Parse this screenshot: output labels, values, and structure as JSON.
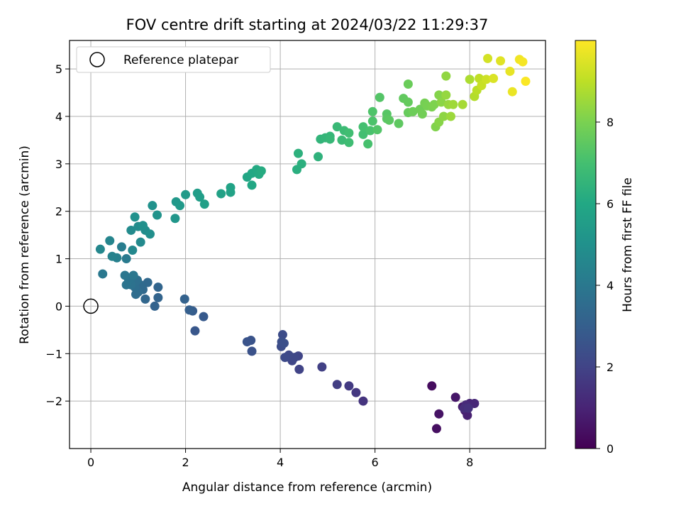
{
  "chart_data": {
    "type": "scatter",
    "title": "FOV centre drift starting at 2024/03/22 11:29:37",
    "xlabel": "Angular distance from reference (arcmin)",
    "ylabel": "Rotation from reference (arcmin)",
    "xlim": [
      -0.45,
      9.6
    ],
    "ylim": [
      -3.0,
      5.6
    ],
    "xticks": [
      0,
      2,
      4,
      6,
      8
    ],
    "yticks": [
      -2,
      -1,
      0,
      1,
      2,
      3,
      4,
      5
    ],
    "xtick_labels": [
      "0",
      "2",
      "4",
      "6",
      "8"
    ],
    "ytick_labels": [
      "−2",
      "−1",
      "0",
      "1",
      "2",
      "3",
      "4",
      "5"
    ],
    "grid": true,
    "legend": {
      "location": "upper left",
      "entries": [
        "Reference platepar"
      ]
    },
    "reference_point": {
      "x": 0,
      "y": 0,
      "label": "Reference platepar"
    },
    "colorbar": {
      "label": "Hours from first FF file",
      "range": [
        0,
        10.0
      ],
      "ticks": [
        0,
        2,
        4,
        6,
        8
      ],
      "tick_labels": [
        "0",
        "2",
        "4",
        "6",
        "8"
      ],
      "colormap": "viridis"
    },
    "points": [
      [
        7.2,
        -1.68,
        0.3
      ],
      [
        7.3,
        -2.58,
        0.4
      ],
      [
        7.35,
        -2.27,
        0.5
      ],
      [
        7.7,
        -1.92,
        0.6
      ],
      [
        7.85,
        -2.12,
        0.7
      ],
      [
        7.9,
        -2.2,
        0.8
      ],
      [
        7.95,
        -2.3,
        0.9
      ],
      [
        8.0,
        -2.05,
        1.0
      ],
      [
        8.1,
        -2.05,
        1.1
      ],
      [
        7.92,
        -2.08,
        1.2
      ],
      [
        7.88,
        -2.15,
        1.3
      ],
      [
        7.97,
        -2.15,
        1.4
      ],
      [
        5.75,
        -2.0,
        1.5
      ],
      [
        5.6,
        -1.82,
        1.6
      ],
      [
        5.45,
        -1.68,
        1.7
      ],
      [
        5.2,
        -1.65,
        1.8
      ],
      [
        4.88,
        -1.28,
        1.9
      ],
      [
        4.4,
        -1.33,
        2.0
      ],
      [
        4.38,
        -1.05,
        2.05
      ],
      [
        4.25,
        -1.15,
        2.1
      ],
      [
        4.3,
        -1.08,
        2.15
      ],
      [
        4.18,
        -1.03,
        2.2
      ],
      [
        4.1,
        -1.08,
        2.25
      ],
      [
        4.05,
        -0.6,
        2.3
      ],
      [
        4.02,
        -0.85,
        2.35
      ],
      [
        4.03,
        -0.75,
        2.4
      ],
      [
        4.08,
        -0.78,
        2.45
      ],
      [
        3.4,
        -0.95,
        2.5
      ],
      [
        3.38,
        -0.72,
        2.55
      ],
      [
        3.3,
        -0.75,
        2.6
      ],
      [
        2.2,
        -0.52,
        2.7
      ],
      [
        2.38,
        -0.22,
        2.8
      ],
      [
        2.15,
        -0.1,
        2.9
      ],
      [
        2.08,
        -0.08,
        3.0
      ],
      [
        1.98,
        0.15,
        3.1
      ],
      [
        1.35,
        0.0,
        3.15
      ],
      [
        1.42,
        0.18,
        3.2
      ],
      [
        1.42,
        0.4,
        3.25
      ],
      [
        1.15,
        0.15,
        3.3
      ],
      [
        1.2,
        0.5,
        3.35
      ],
      [
        1.1,
        0.35,
        3.4
      ],
      [
        1.05,
        0.45,
        3.45
      ],
      [
        1.0,
        0.3,
        3.5
      ],
      [
        0.95,
        0.25,
        3.55
      ],
      [
        0.93,
        0.4,
        3.6
      ],
      [
        0.98,
        0.55,
        3.65
      ],
      [
        0.88,
        0.6,
        3.7
      ],
      [
        0.85,
        0.45,
        3.75
      ],
      [
        0.8,
        0.55,
        3.8
      ],
      [
        0.75,
        0.45,
        3.85
      ],
      [
        0.72,
        0.65,
        3.9
      ],
      [
        0.9,
        0.65,
        3.95
      ],
      [
        0.25,
        0.68,
        4.0
      ],
      [
        0.75,
        1.0,
        4.1
      ],
      [
        0.65,
        1.25,
        4.2
      ],
      [
        0.55,
        1.02,
        4.3
      ],
      [
        0.45,
        1.05,
        4.4
      ],
      [
        0.4,
        1.38,
        4.5
      ],
      [
        0.2,
        1.2,
        4.6
      ],
      [
        0.88,
        1.18,
        4.65
      ],
      [
        1.05,
        1.35,
        4.7
      ],
      [
        0.85,
        1.6,
        4.75
      ],
      [
        1.0,
        1.68,
        4.8
      ],
      [
        1.15,
        1.6,
        4.85
      ],
      [
        1.25,
        1.52,
        4.9
      ],
      [
        1.1,
        1.7,
        4.95
      ],
      [
        0.93,
        1.88,
        5.0
      ],
      [
        1.3,
        2.12,
        5.05
      ],
      [
        1.4,
        1.92,
        5.1
      ],
      [
        1.78,
        1.85,
        5.2
      ],
      [
        1.8,
        2.2,
        5.3
      ],
      [
        1.88,
        2.12,
        5.35
      ],
      [
        2.0,
        2.35,
        5.4
      ],
      [
        2.25,
        2.38,
        5.5
      ],
      [
        2.3,
        2.3,
        5.55
      ],
      [
        2.4,
        2.15,
        5.6
      ],
      [
        2.75,
        2.37,
        5.7
      ],
      [
        2.95,
        2.4,
        5.75
      ],
      [
        2.95,
        2.5,
        5.8
      ],
      [
        3.3,
        2.72,
        5.9
      ],
      [
        3.4,
        2.55,
        5.95
      ],
      [
        3.4,
        2.8,
        6.0
      ],
      [
        3.5,
        2.88,
        6.05
      ],
      [
        3.55,
        2.78,
        6.1
      ],
      [
        3.6,
        2.85,
        6.15
      ],
      [
        4.35,
        2.88,
        6.25
      ],
      [
        4.45,
        3.0,
        6.3
      ],
      [
        4.38,
        3.22,
        6.35
      ],
      [
        4.8,
        3.15,
        6.4
      ],
      [
        4.85,
        3.52,
        6.5
      ],
      [
        4.95,
        3.55,
        6.55
      ],
      [
        5.05,
        3.58,
        6.6
      ],
      [
        5.05,
        3.52,
        6.65
      ],
      [
        5.2,
        3.78,
        6.7
      ],
      [
        5.3,
        3.5,
        6.75
      ],
      [
        5.35,
        3.7,
        6.8
      ],
      [
        5.45,
        3.45,
        6.85
      ],
      [
        5.45,
        3.65,
        6.9
      ],
      [
        5.75,
        3.62,
        6.95
      ],
      [
        5.75,
        3.78,
        7.0
      ],
      [
        5.85,
        3.42,
        7.05
      ],
      [
        5.9,
        3.7,
        7.1
      ],
      [
        5.95,
        3.9,
        7.15
      ],
      [
        5.95,
        4.1,
        7.2
      ],
      [
        6.05,
        3.72,
        7.25
      ],
      [
        6.1,
        4.4,
        7.3
      ],
      [
        6.25,
        4.05,
        7.35
      ],
      [
        6.25,
        3.95,
        7.4
      ],
      [
        6.3,
        3.92,
        7.45
      ],
      [
        6.5,
        3.85,
        7.5
      ],
      [
        6.6,
        4.38,
        7.55
      ],
      [
        6.7,
        4.3,
        7.6
      ],
      [
        6.7,
        4.08,
        7.65
      ],
      [
        6.7,
        4.68,
        7.7
      ],
      [
        6.8,
        4.1,
        7.75
      ],
      [
        6.95,
        4.15,
        7.8
      ],
      [
        7.0,
        4.05,
        7.85
      ],
      [
        7.05,
        4.28,
        7.9
      ],
      [
        7.1,
        4.22,
        7.95
      ],
      [
        7.2,
        4.2,
        8.0
      ],
      [
        7.25,
        4.25,
        8.05
      ],
      [
        7.28,
        3.78,
        8.1
      ],
      [
        7.35,
        4.45,
        8.15
      ],
      [
        7.35,
        3.88,
        8.2
      ],
      [
        7.4,
        4.3,
        8.25
      ],
      [
        7.45,
        4.0,
        8.3
      ],
      [
        7.5,
        4.85,
        8.35
      ],
      [
        7.5,
        4.45,
        8.4
      ],
      [
        7.55,
        4.25,
        8.45
      ],
      [
        7.6,
        4.0,
        8.5
      ],
      [
        7.65,
        4.25,
        8.55
      ],
      [
        7.85,
        4.25,
        8.65
      ],
      [
        8.0,
        4.78,
        8.75
      ],
      [
        8.1,
        4.42,
        8.85
      ],
      [
        8.15,
        4.55,
        8.95
      ],
      [
        8.2,
        4.8,
        9.05
      ],
      [
        8.25,
        4.65,
        9.15
      ],
      [
        8.35,
        4.78,
        9.25
      ],
      [
        8.38,
        5.22,
        9.35
      ],
      [
        8.5,
        4.8,
        9.45
      ],
      [
        8.65,
        5.17,
        9.55
      ],
      [
        8.85,
        4.95,
        9.65
      ],
      [
        8.9,
        4.52,
        9.7
      ],
      [
        9.05,
        5.2,
        9.8
      ],
      [
        9.12,
        5.15,
        9.88
      ],
      [
        9.18,
        4.74,
        9.95
      ]
    ]
  }
}
